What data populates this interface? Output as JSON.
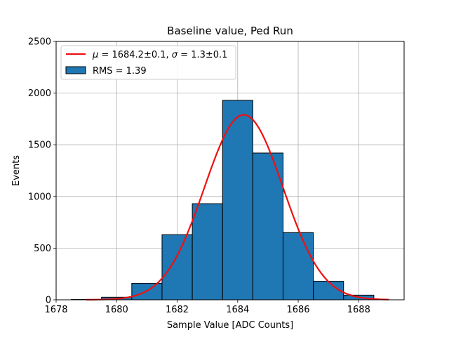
{
  "chart_data": {
    "type": "bar",
    "title": "Baseline value, Ped Run",
    "xlabel": "Sample Value [ADC Counts]",
    "ylabel": "Events",
    "xlim": [
      1678,
      1689.5
    ],
    "ylim": [
      0,
      2500
    ],
    "xticks": [
      1678,
      1680,
      1682,
      1684,
      1686,
      1688
    ],
    "yticks": [
      0,
      500,
      1000,
      1500,
      2000,
      2500
    ],
    "grid": true,
    "legend_position": "top-left",
    "histogram": {
      "bin_edges": [
        1678.5,
        1679.5,
        1680.5,
        1681.5,
        1682.5,
        1683.5,
        1684.5,
        1685.5,
        1686.5,
        1687.5,
        1688.5
      ],
      "counts": [
        3,
        25,
        160,
        630,
        930,
        1930,
        1420,
        650,
        180,
        45
      ],
      "color": "#1f77b4",
      "label": "RMS = 1.39"
    },
    "fit": {
      "label_mu": "1684.2±0.1",
      "label_sigma": "1.3±0.1",
      "mu": 1684.2,
      "sigma": 1.3,
      "amplitude": 1790,
      "x_range": [
        1679,
        1689
      ],
      "color": "#ee1111"
    }
  }
}
